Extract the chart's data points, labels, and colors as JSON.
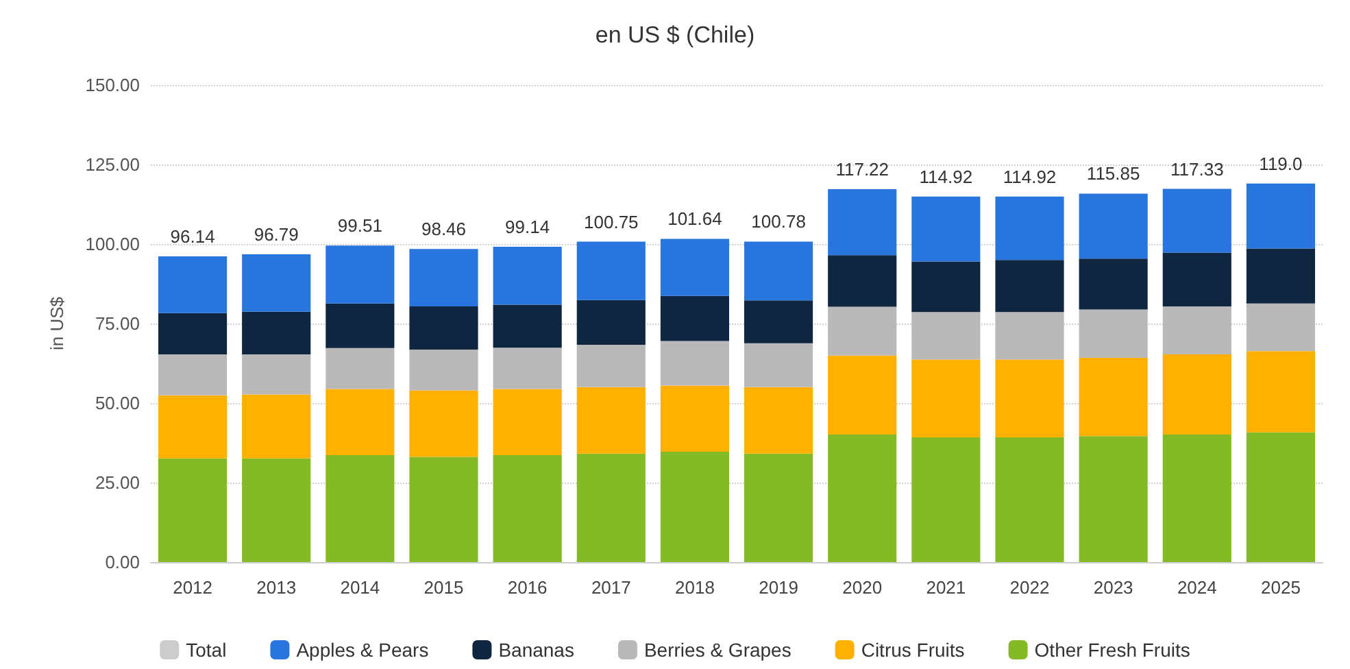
{
  "chart_data": {
    "type": "bar",
    "title": "en US $ (Chile)",
    "ylabel": "in US$",
    "stacked": true,
    "categories": [
      "2012",
      "2013",
      "2014",
      "2015",
      "2016",
      "2017",
      "2018",
      "2019",
      "2020",
      "2021",
      "2022",
      "2023",
      "2024",
      "2025"
    ],
    "series": [
      {
        "name": "Other Fresh Fruits",
        "color": "#83ba25",
        "values": [
          32.6,
          32.6,
          33.6,
          33.1,
          33.6,
          34.1,
          34.7,
          34.1,
          40.1,
          39.2,
          39.2,
          39.6,
          40.1,
          40.8
        ]
      },
      {
        "name": "Citrus Fruits",
        "color": "#ffb000",
        "values": [
          19.8,
          20.1,
          20.8,
          20.9,
          20.8,
          20.9,
          20.8,
          20.9,
          24.8,
          24.5,
          24.5,
          24.6,
          25.2,
          25.5
        ]
      },
      {
        "name": "Berries & Grapes",
        "color": "#b9b9b9",
        "values": [
          12.9,
          12.6,
          12.9,
          12.8,
          13.0,
          13.3,
          14.0,
          13.8,
          15.4,
          14.9,
          14.9,
          15.2,
          15.1,
          15.0
        ]
      },
      {
        "name": "Bananas",
        "color": "#0f2640",
        "values": [
          13.0,
          13.4,
          14.0,
          13.6,
          13.5,
          14.1,
          14.2,
          13.5,
          16.2,
          15.9,
          16.4,
          16.0,
          16.9,
          17.3
        ]
      },
      {
        "name": "Apples & Pears",
        "color": "#2876dd",
        "values": [
          17.84,
          18.09,
          18.21,
          18.06,
          18.24,
          18.35,
          17.94,
          18.48,
          20.72,
          20.42,
          19.92,
          20.45,
          20.03,
          20.4
        ]
      },
      {
        "name": "Total",
        "type": "line",
        "color": "#cccccc",
        "values": [
          null,
          null,
          null,
          null,
          null,
          null,
          null,
          null,
          null,
          null,
          null,
          null,
          null,
          null
        ]
      }
    ],
    "totals": [
      "96.14",
      "96.79",
      "99.51",
      "98.46",
      "99.14",
      "100.75",
      "101.64",
      "100.78",
      "117.22",
      "114.92",
      "114.92",
      "115.85",
      "117.33",
      "119.0"
    ],
    "ylim": [
      0,
      150
    ],
    "yticks": [
      {
        "value": 0,
        "label": "0.00"
      },
      {
        "value": 25,
        "label": "25.00"
      },
      {
        "value": 50,
        "label": "50.00"
      },
      {
        "value": 75,
        "label": "75.00"
      },
      {
        "value": 100,
        "label": "100.00"
      },
      {
        "value": 125,
        "label": "125.00"
      },
      {
        "value": 150,
        "label": "150.00"
      }
    ],
    "grid": "y",
    "legend": "bottom"
  }
}
